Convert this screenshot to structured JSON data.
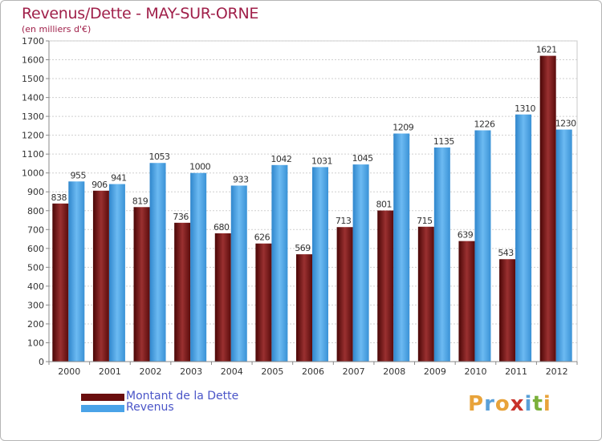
{
  "title": "Revenus/Dette - MAY-SUR-ORNE",
  "subtitle": "(en milliers d'€)",
  "logo": {
    "text": "Proxiti",
    "letters": [
      "P",
      "r",
      "o",
      "x",
      "i",
      "t",
      "i"
    ],
    "colors": [
      "#e8a33a",
      "#5aa0d8",
      "#e8a33a",
      "#c8322a",
      "#5aa0d8",
      "#7ab03a",
      "#e8a33a"
    ]
  },
  "chart_data": {
    "type": "bar",
    "title": "Revenus/Dette - MAY-SUR-ORNE",
    "subtitle": "(en milliers d'€)",
    "categories": [
      "2000",
      "2001",
      "2002",
      "2003",
      "2004",
      "2005",
      "2006",
      "2007",
      "2008",
      "2009",
      "2010",
      "2011",
      "2012"
    ],
    "series": [
      {
        "name": "Montant de la Dette",
        "color": "#7a1a1a",
        "values": [
          838,
          906,
          819,
          736,
          680,
          626,
          569,
          713,
          801,
          715,
          639,
          543,
          1621
        ]
      },
      {
        "name": "Revenus",
        "color": "#4aa3e8",
        "values": [
          955,
          941,
          1053,
          1000,
          933,
          1042,
          1031,
          1045,
          1209,
          1135,
          1226,
          1310,
          1230
        ]
      }
    ],
    "ylim": [
      0,
      1700
    ],
    "yticks": [
      0,
      100,
      200,
      300,
      400,
      500,
      600,
      700,
      800,
      900,
      1000,
      1100,
      1200,
      1300,
      1400,
      1500,
      1600,
      1700
    ],
    "grid": true,
    "legend": "bottom-left"
  }
}
